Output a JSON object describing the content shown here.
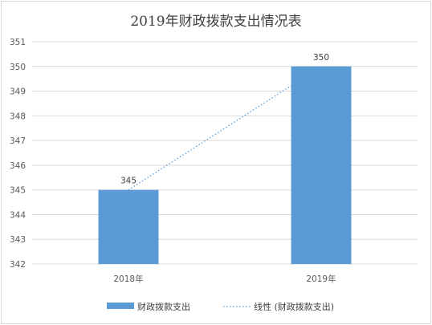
{
  "chart_data": {
    "type": "bar",
    "title": "2019年财政拨款支出情况表",
    "categories": [
      "2018年",
      "2019年"
    ],
    "series": [
      {
        "name": "财政拨款支出",
        "values": [
          345,
          350
        ],
        "color": "#5b9bd5"
      }
    ],
    "data_labels": [
      "345",
      "350"
    ],
    "trendline": {
      "name": "线性 (财政拨款支出)",
      "type": "linear",
      "style": "dotted",
      "color": "#5b9bd5"
    },
    "ylim": [
      342,
      351
    ],
    "yticks": [
      "342",
      "343",
      "344",
      "345",
      "346",
      "347",
      "348",
      "349",
      "350",
      "351"
    ],
    "grid": true,
    "legend_position": "bottom",
    "xlabel": "",
    "ylabel": ""
  }
}
